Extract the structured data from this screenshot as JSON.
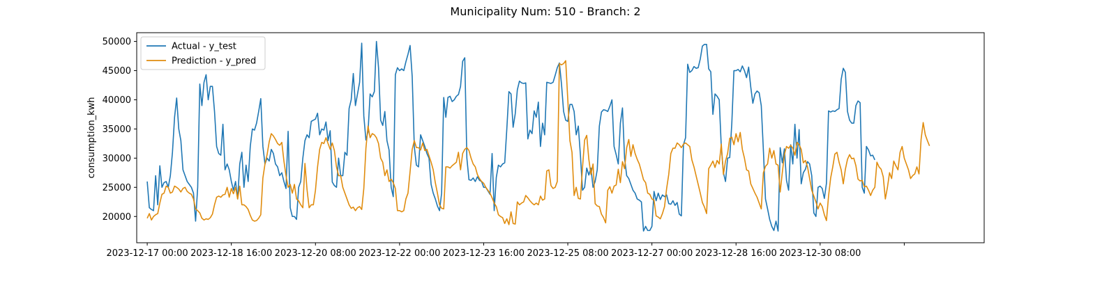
{
  "chart_data": {
    "type": "line",
    "title": "Municipality Num: 510 - Branch: 2",
    "xlabel": "",
    "ylabel": "consumption_kwh",
    "x_start": "2023-12-17 00:00",
    "x_step_hours": 1,
    "x_range_hours": [
      -5,
      398
    ],
    "xticks": [
      {
        "label": "2023-12-17 00:00",
        "hour": 0
      },
      {
        "label": "2023-12-18 16:00",
        "hour": 40
      },
      {
        "label": "2023-12-20 08:00",
        "hour": 80
      },
      {
        "label": "2023-12-22 00:00",
        "hour": 120
      },
      {
        "label": "2023-12-23 16:00",
        "hour": 160
      },
      {
        "label": "2023-12-25 08:00",
        "hour": 200
      },
      {
        "label": "2023-12-27 00:00",
        "hour": 240
      },
      {
        "label": "2023-12-28 16:00",
        "hour": 280
      },
      {
        "label": "2023-12-30 08:00",
        "hour": 320
      },
      {
        "label": "",
        "hour": 360
      }
    ],
    "yticks": [
      20000,
      25000,
      30000,
      35000,
      40000,
      45000,
      50000
    ],
    "ylim": [
      15500,
      51500
    ],
    "grid": false,
    "legend_position": "top-left",
    "series": [
      {
        "name": "Actual - y_test",
        "color": "#1f77b4",
        "values": [
          26000,
          21500,
          21200,
          21000,
          27000,
          22000,
          28700,
          25000,
          25800,
          26000,
          25000,
          27000,
          31000,
          37000,
          40300,
          35000,
          33000,
          28000,
          27000,
          26000,
          25500,
          25000,
          24000,
          19200,
          25000,
          42700,
          39000,
          43000,
          44300,
          40000,
          42300,
          42300,
          38000,
          32000,
          30800,
          30500,
          35800,
          28000,
          29000,
          28000,
          26000,
          24500,
          26000,
          23000,
          29000,
          31000,
          25000,
          28800,
          26000,
          32000,
          35000,
          34800,
          36000,
          38000,
          40200,
          32000,
          29000,
          30000,
          29500,
          31500,
          30800,
          29000,
          28500,
          27000,
          27500,
          26000,
          24800,
          34600,
          21500,
          20000,
          20000,
          19500,
          25000,
          26000,
          30000,
          33000,
          34000,
          33500,
          36300,
          36500,
          36700,
          37700,
          34000,
          35000,
          34800,
          36200,
          33000,
          34700,
          25900,
          25300,
          25000,
          30000,
          27000,
          27000,
          31000,
          30500,
          38500,
          40000,
          44500,
          39000,
          41000,
          43000,
          49700,
          37200,
          33100,
          34500,
          41000,
          40500,
          41400,
          50000,
          45500,
          36500,
          35600,
          38000,
          33000,
          31400,
          25000,
          23400,
          44300,
          45500,
          45000,
          45300,
          45000,
          46500,
          47800,
          49300,
          44000,
          32000,
          28800,
          28500,
          34000,
          33000,
          32000,
          30800,
          30000,
          25500,
          24000,
          23000,
          21800,
          21000,
          24000,
          40400,
          37000,
          40400,
          40600,
          39700,
          40000,
          40600,
          40900,
          42300,
          46600,
          47200,
          30000,
          26300,
          26200,
          26600,
          26000,
          26800,
          26200,
          26000,
          25000,
          25000,
          24400,
          23800,
          30800,
          21000,
          26700,
          28800,
          28500,
          29000,
          29200,
          35000,
          41400,
          41000,
          35300,
          37600,
          41700,
          43200,
          42900,
          42800,
          42900,
          33300,
          34800,
          34200,
          38100,
          37000,
          39600,
          32000,
          36000,
          34000,
          43000,
          42900,
          42800,
          43000,
          44200,
          45500,
          46300,
          42700,
          38000,
          36500,
          36300,
          39200,
          39200,
          38000,
          34000,
          35500,
          30500,
          24500,
          25000,
          28300,
          27100,
          28300,
          25000,
          26000,
          28000,
          35500,
          37900,
          38300,
          38200,
          38000,
          38900,
          40000,
          32000,
          30600,
          29000,
          36000,
          38600,
          30000,
          27000,
          26500,
          25500,
          24500,
          24000,
          23000,
          22800,
          22500,
          17500,
          18300,
          17600,
          17600,
          18300,
          24300,
          22700,
          24000,
          22900,
          23700,
          23400,
          23700,
          22200,
          22100,
          22700,
          21900,
          22400,
          20400,
          20100,
          32300,
          33500,
          46100,
          44700,
          45000,
          45700,
          45400,
          45500,
          47000,
          49200,
          49500,
          49500,
          45300,
          44800,
          37500,
          41000,
          40600,
          40000,
          31900,
          27500,
          26000,
          30000,
          30100,
          36000,
          45000,
          45000,
          45200,
          44800,
          45800,
          45000,
          43800,
          45600,
          42200,
          39400,
          41000,
          41500,
          41200,
          39000,
          31400,
          23000,
          21300,
          19500,
          18300,
          17600,
          19200,
          17500,
          31800,
          29200,
          31600,
          26200,
          24500,
          32300,
          29000,
          35800,
          30000,
          34900,
          25600,
          27500,
          28100,
          29400,
          29000,
          27000,
          20600,
          20000,
          25000,
          25200,
          24800,
          23100,
          25700,
          38100,
          37900,
          38100,
          38000,
          38300,
          38500,
          43500,
          45400,
          44700,
          38000,
          36500,
          36000,
          36000,
          39000,
          39800,
          39500,
          25000,
          24000,
          32000,
          31400,
          30400,
          30500,
          29700
        ]
      },
      {
        "name": "Prediction - y_pred",
        "color": "#e08c0e",
        "values": [
          19700,
          20500,
          19400,
          20000,
          20300,
          20500,
          22300,
          23800,
          24000,
          25200,
          25000,
          24000,
          24200,
          25200,
          25000,
          24700,
          24200,
          24800,
          25000,
          24300,
          24000,
          23800,
          23000,
          21300,
          21000,
          20600,
          19700,
          19400,
          19600,
          19500,
          19800,
          20400,
          22000,
          23300,
          23500,
          23300,
          23700,
          23800,
          25000,
          23300,
          24800,
          23900,
          25000,
          23000,
          25200,
          22000,
          22000,
          21700,
          21200,
          20200,
          19400,
          19200,
          19300,
          19700,
          20300,
          26600,
          29000,
          30600,
          32800,
          34200,
          33800,
          33200,
          32500,
          32200,
          32700,
          29500,
          27000,
          25000,
          25500,
          24000,
          25500,
          23000,
          22700,
          22000,
          21500,
          29100,
          24600,
          21500,
          22000,
          22000,
          24500,
          28500,
          31500,
          32700,
          32500,
          33500,
          32500,
          31500,
          32600,
          31300,
          28500,
          27000,
          27000,
          25000,
          24000,
          23000,
          22000,
          21400,
          21600,
          21000,
          21500,
          21700,
          21200,
          24800,
          31700,
          35500,
          33500,
          34200,
          34000,
          33500,
          32500,
          30000,
          29300,
          27000,
          28000,
          26000,
          26400,
          25800,
          24800,
          21000,
          21000,
          20800,
          21000,
          23000,
          24000,
          27700,
          31500,
          33000,
          31800,
          31800,
          31400,
          32600,
          31300,
          31500,
          30400,
          29300,
          28000,
          25800,
          24000,
          22000,
          21400,
          21300,
          28500,
          28500,
          28300,
          28700,
          29000,
          29300,
          31000,
          28000,
          30800,
          31500,
          31800,
          31300,
          30000,
          29000,
          28500,
          27200,
          26500,
          26000,
          25700,
          25000,
          24500,
          24000,
          23200,
          22300,
          21700,
          20300,
          20000,
          19800,
          18800,
          19600,
          18600,
          20800,
          18800,
          18700,
          22500,
          22000,
          22300,
          22500,
          23600,
          23200,
          22700,
          22300,
          22000,
          22300,
          22000,
          23500,
          22800,
          23000,
          27800,
          28000,
          25300,
          24800,
          25000,
          26000,
          46200,
          46000,
          46200,
          46700,
          40000,
          33000,
          31000,
          23600,
          25000,
          23100,
          23000,
          28400,
          33100,
          33900,
          29800,
          27200,
          29000,
          22200,
          21800,
          21700,
          20400,
          19800,
          18900,
          24500,
          25100,
          24000,
          25200,
          25400,
          28100,
          25800,
          29400,
          28200,
          31800,
          33200,
          30300,
          32300,
          30800,
          29800,
          29000,
          27700,
          26300,
          25800,
          24000,
          23800,
          23000,
          22800,
          20100,
          19900,
          19600,
          20500,
          21700,
          24800,
          27200,
          30800,
          31700,
          31700,
          32600,
          32300,
          31800,
          32400,
          32600,
          32300,
          32000,
          29700,
          28500,
          27000,
          25500,
          24000,
          22400,
          21600,
          20500,
          28200,
          28800,
          29500,
          28400,
          29600,
          29000,
          32400,
          27200,
          29500,
          30800,
          33400,
          33600,
          32300,
          34200,
          32800,
          34400,
          31500,
          30000,
          28000,
          27800,
          25600,
          24800,
          24000,
          23300,
          22300,
          21300,
          27500,
          28600,
          29000,
          31700,
          30000,
          31300,
          29000,
          28800,
          24200,
          27500,
          30600,
          32000,
          31700,
          32200,
          31700,
          30500,
          32700,
          32300,
          31500,
          29200,
          29600,
          28500,
          26500,
          24500,
          23500,
          22500,
          21300,
          22300,
          21700,
          20300,
          19300,
          23500,
          26600,
          28500,
          30700,
          31000,
          29300,
          28000,
          25600,
          28100,
          29800,
          30600,
          29900,
          30000,
          28700,
          26400,
          26100,
          26200,
          25100,
          25200,
          24500,
          23600,
          24500,
          25000,
          29300,
          28500,
          28100,
          26800,
          23000,
          25000,
          27500,
          26500,
          29500,
          28700,
          28000,
          31000,
          32000,
          30000,
          29000,
          28000,
          26500,
          27000,
          27300,
          28500,
          27300,
          33200,
          36100,
          34000,
          33000,
          32100
        ]
      }
    ]
  }
}
